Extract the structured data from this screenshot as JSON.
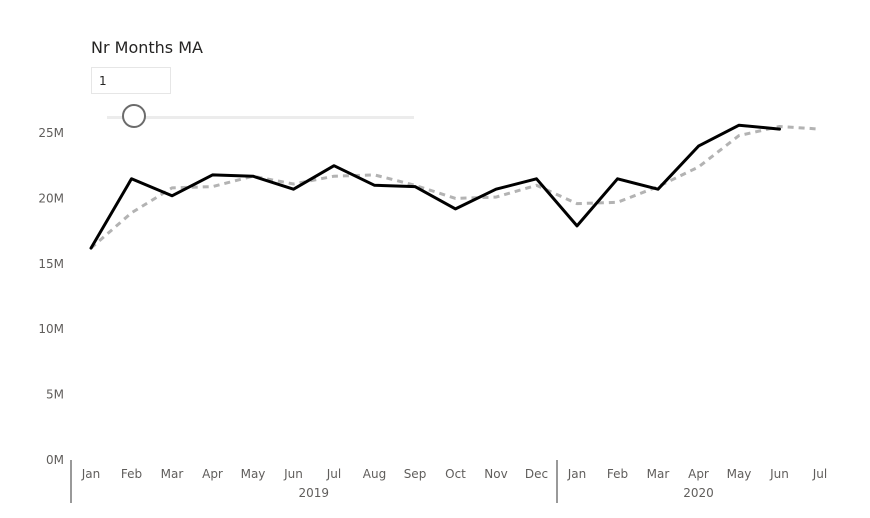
{
  "slicer": {
    "title": "Nr Months MA",
    "value": "1",
    "slider_fraction": 0.0
  },
  "chart_data": {
    "type": "line",
    "x": [
      "Jan",
      "Feb",
      "Mar",
      "Apr",
      "May",
      "Jun",
      "Jul",
      "Aug",
      "Sep",
      "Oct",
      "Nov",
      "Dec",
      "Jan",
      "Feb",
      "Mar",
      "Apr",
      "May",
      "Jun",
      "Jul"
    ],
    "year_groups": [
      {
        "label": "2019",
        "start": 0,
        "end": 11
      },
      {
        "label": "2020",
        "start": 12,
        "end": 18
      }
    ],
    "y_ticks": [
      "0M",
      "5M",
      "10M",
      "15M",
      "20M",
      "25M"
    ],
    "ylim": [
      0,
      25000000
    ],
    "series": [
      {
        "style": "solid",
        "color": "#000000",
        "values": [
          16200000,
          21500000,
          20200000,
          21800000,
          21700000,
          20700000,
          22500000,
          21000000,
          20900000,
          19200000,
          20700000,
          21500000,
          17900000,
          21500000,
          20700000,
          24000000,
          25600000,
          25300000,
          null
        ]
      },
      {
        "style": "dashed",
        "color": "#b3b3b3",
        "values": [
          16200000,
          18900000,
          20800000,
          20900000,
          21700000,
          21100000,
          21700000,
          21800000,
          21000000,
          20000000,
          20100000,
          21000000,
          19600000,
          19700000,
          20900000,
          22400000,
          24800000,
          25500000,
          25300000
        ]
      }
    ]
  }
}
